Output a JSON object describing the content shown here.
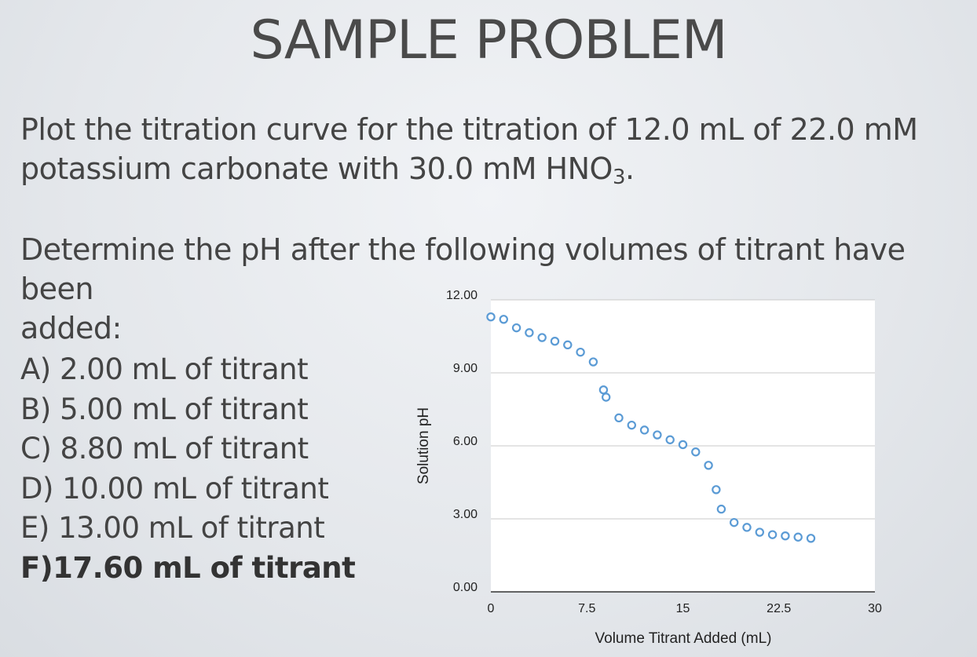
{
  "slide": {
    "title": "SAMPLE PROBLEM",
    "prompt_line1": "Plot the titration curve for the titration of 12.0 mL of 22.0 mM",
    "prompt_line2_pre": "potassium carbonate with 30.0 mM HNO",
    "prompt_line2_sub": "3",
    "prompt_line2_post": ".",
    "prompt2_line1": "Determine the pH after the following volumes of titrant have been",
    "prompt2_line2": "added:",
    "options": [
      "A) 2.00 mL of titrant",
      "B) 5.00 mL of titrant",
      "C) 8.80 mL of titrant",
      "D) 10.00 mL of titrant",
      "E) 13.00 mL of titrant",
      "F)17.60 mL of titrant"
    ]
  },
  "chart_data": {
    "type": "scatter",
    "xlabel": "Volume Titrant Added (mL)",
    "ylabel": "Solution pH",
    "xlim": [
      0,
      30
    ],
    "ylim": [
      0,
      12
    ],
    "x_ticks": [
      0,
      7.5,
      15,
      22.5,
      30
    ],
    "x_tick_labels": [
      "0",
      "7.5",
      "15",
      "22.5",
      "30"
    ],
    "y_ticks": [
      0,
      3,
      6,
      9,
      12
    ],
    "y_tick_labels": [
      "0.00",
      "3.00",
      "6.00",
      "9.00",
      "12.00"
    ],
    "grid": "horizontal",
    "marker_color": "#5b9bd5",
    "points": [
      [
        0.0,
        11.3
      ],
      [
        1.0,
        11.2
      ],
      [
        2.0,
        10.85
      ],
      [
        3.0,
        10.65
      ],
      [
        4.0,
        10.45
      ],
      [
        5.0,
        10.3
      ],
      [
        6.0,
        10.15
      ],
      [
        7.0,
        9.85
      ],
      [
        8.0,
        9.45
      ],
      [
        8.8,
        8.3
      ],
      [
        9.0,
        8.0
      ],
      [
        10.0,
        7.15
      ],
      [
        11.0,
        6.85
      ],
      [
        12.0,
        6.65
      ],
      [
        13.0,
        6.45
      ],
      [
        14.0,
        6.25
      ],
      [
        15.0,
        6.05
      ],
      [
        16.0,
        5.75
      ],
      [
        17.0,
        5.2
      ],
      [
        17.6,
        4.2
      ],
      [
        18.0,
        3.4
      ],
      [
        19.0,
        2.85
      ],
      [
        20.0,
        2.65
      ],
      [
        21.0,
        2.45
      ],
      [
        22.0,
        2.35
      ],
      [
        23.0,
        2.3
      ],
      [
        24.0,
        2.25
      ],
      [
        25.0,
        2.2
      ]
    ]
  }
}
